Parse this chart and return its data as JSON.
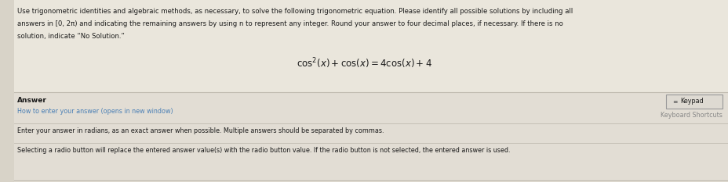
{
  "bg_color": "#eae6dc",
  "bottom_bg": "#e2ddd4",
  "text_color": "#1a1a1a",
  "link_color": "#4a7fb5",
  "gray_color": "#888888",
  "divider_color": "#c0bbb0",
  "keypad_border_color": "#999999",
  "keypad_bg": "#dedad2",
  "keypad_icon_color": "#555555",
  "title_line1": "Use trigonometric identities and algebraic methods, as necessary, to solve the following trigonometric equation. Please identify all possible solutions by including all",
  "title_line2": "answers in [0, 2π) and indicating the remaining answers by using n to represent any integer. Round your answer to four decimal places, if necessary. If there is no",
  "title_line3": "solution, indicate “No Solution.”",
  "answer_label": "Answer",
  "how_to_label": "How to enter your answer (opens in new window)",
  "keypad_label": "Keypad",
  "keyboard_shortcuts_label": "Keyboard Shortcuts",
  "instruction_line1": "Enter your answer in radians, as an exact answer when possible. Multiple answers should be separated by commas.",
  "instruction_line2": "Selecting a radio button will replace the entered answer value(s) with the radio button value. If the radio button is not selected, the entered answer is used."
}
